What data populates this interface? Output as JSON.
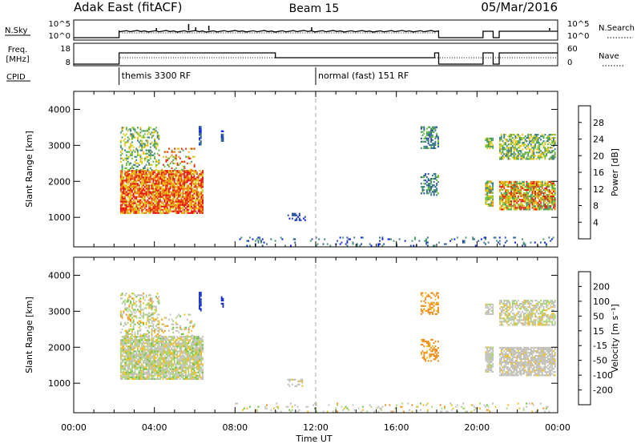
{
  "header": {
    "station": "Adak East (fitACF)",
    "beam": "Beam 15",
    "date": "05/Mar/2016"
  },
  "top_panels": {
    "nsky": {
      "label": "N.Sky",
      "left_ticks": [
        "10^5",
        "10^0"
      ],
      "right_ticks": [
        "10^5",
        "10^0"
      ],
      "right_label": "N.Search"
    },
    "freq": {
      "label_line1": "Freq.",
      "label_line2": "[MHz]",
      "left_ticks": [
        "18",
        "8"
      ],
      "right_ticks": [
        "60",
        "0"
      ],
      "right_label": "Nave"
    },
    "cpid": {
      "label": "CPID",
      "programs": [
        {
          "name": "themis 3300 RF",
          "start": 2.25
        },
        {
          "name": "normal (fast) 151 RF",
          "start": 12.0
        }
      ]
    }
  },
  "chart_data": [
    {
      "type": "heatmap",
      "name": "power",
      "ylabel": "Slant Range [km]",
      "yticks": [
        1000,
        2000,
        3000,
        4000
      ],
      "ylim": [
        180,
        4500
      ],
      "xlim": [
        0,
        24
      ],
      "colorbar": {
        "label": "Power [dB]",
        "ticks": [
          4,
          8,
          12,
          16,
          20,
          24,
          28
        ],
        "colors": [
          "#0a1ee6",
          "#2a4fa0",
          "#3a7a8a",
          "#4a9a6a",
          "#6cbf3a",
          "#c8d020",
          "#f0c010",
          "#f08018",
          "#e83010",
          "#e81010"
        ]
      },
      "marker_time": "12:00"
    },
    {
      "type": "heatmap",
      "name": "velocity",
      "ylabel": "Slant Range [km]",
      "yticks": [
        1000,
        2000,
        3000,
        4000
      ],
      "ylim": [
        180,
        4500
      ],
      "xlim": [
        0,
        24
      ],
      "colorbar": {
        "label": "Velocity [m s⁻¹]",
        "ticks": [
          "200",
          "100",
          "50",
          "15",
          "-15",
          "-50",
          "-100",
          "-200"
        ],
        "colors": [
          "#1a30c8",
          "#2a5aa0",
          "#3e8e70",
          "#6cc040",
          "#a8d870",
          "#c8c8c0",
          "#c0c0b8",
          "#f0c020",
          "#f09020",
          "#f06010",
          "#e82010",
          "#e81010"
        ]
      },
      "marker_time": "12:00"
    }
  ],
  "xaxis": {
    "title": "Time UT",
    "ticks": [
      "00:00",
      "04:00",
      "08:00",
      "12:00",
      "16:00",
      "20:00",
      "00:00"
    ]
  }
}
